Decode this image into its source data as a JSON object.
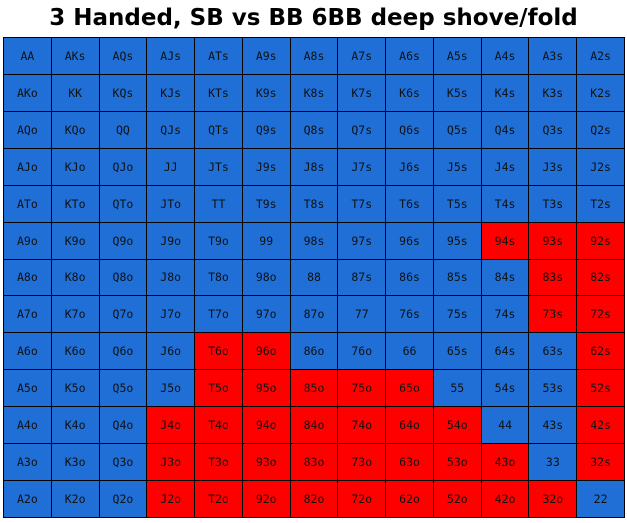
{
  "title": "3 Handed, SB vs BB 6BB deep shove/fold",
  "colors": {
    "shove": "#ff0000",
    "fold": "#1f6fd6",
    "grid": "#000000"
  },
  "chart_data": {
    "type": "heatmap",
    "title": "3 Handed, SB vs BB 6BB deep shove/fold",
    "legend": {
      "S": "shove",
      "F": "fold"
    },
    "hands": [
      [
        "AA",
        "AKs",
        "AQs",
        "AJs",
        "ATs",
        "A9s",
        "A8s",
        "A7s",
        "A6s",
        "A5s",
        "A4s",
        "A3s",
        "A2s"
      ],
      [
        "AKo",
        "KK",
        "KQs",
        "KJs",
        "KTs",
        "K9s",
        "K8s",
        "K7s",
        "K6s",
        "K5s",
        "K4s",
        "K3s",
        "K2s"
      ],
      [
        "AQo",
        "KQo",
        "QQ",
        "QJs",
        "QTs",
        "Q9s",
        "Q8s",
        "Q7s",
        "Q6s",
        "Q5s",
        "Q4s",
        "Q3s",
        "Q2s"
      ],
      [
        "AJo",
        "KJo",
        "QJo",
        "JJ",
        "JTs",
        "J9s",
        "J8s",
        "J7s",
        "J6s",
        "J5s",
        "J4s",
        "J3s",
        "J2s"
      ],
      [
        "ATo",
        "KTo",
        "QTo",
        "JTo",
        "TT",
        "T9s",
        "T8s",
        "T7s",
        "T6s",
        "T5s",
        "T4s",
        "T3s",
        "T2s"
      ],
      [
        "A9o",
        "K9o",
        "Q9o",
        "J9o",
        "T9o",
        "99",
        "98s",
        "97s",
        "96s",
        "95s",
        "94s",
        "93s",
        "92s"
      ],
      [
        "A8o",
        "K8o",
        "Q8o",
        "J8o",
        "T8o",
        "98o",
        "88",
        "87s",
        "86s",
        "85s",
        "84s",
        "83s",
        "82s"
      ],
      [
        "A7o",
        "K7o",
        "Q7o",
        "J7o",
        "T7o",
        "97o",
        "87o",
        "77",
        "76s",
        "75s",
        "74s",
        "73s",
        "72s"
      ],
      [
        "A6o",
        "K6o",
        "Q6o",
        "J6o",
        "T6o",
        "96o",
        "86o",
        "76o",
        "66",
        "65s",
        "64s",
        "63s",
        "62s"
      ],
      [
        "A5o",
        "K5o",
        "Q5o",
        "J5o",
        "T5o",
        "95o",
        "85o",
        "75o",
        "65o",
        "55",
        "54s",
        "53s",
        "52s"
      ],
      [
        "A4o",
        "K4o",
        "Q4o",
        "J4o",
        "T4o",
        "94o",
        "84o",
        "74o",
        "64o",
        "54o",
        "44",
        "43s",
        "42s"
      ],
      [
        "A3o",
        "K3o",
        "Q3o",
        "J3o",
        "T3o",
        "93o",
        "83o",
        "73o",
        "63o",
        "53o",
        "43o",
        "33",
        "32s"
      ],
      [
        "A2o",
        "K2o",
        "Q2o",
        "J2o",
        "T2o",
        "92o",
        "82o",
        "72o",
        "62o",
        "52o",
        "42o",
        "32o",
        "22"
      ]
    ],
    "actions": [
      "FFFFFFFFFFFFF",
      "FFFFFFFFFFFFF",
      "FFFFFFFFFFFFF",
      "FFFFFFFFFFFFF",
      "FFFFFFFFFFFFF",
      "FFFFFFFFFFSSS",
      "FFFFFFFFFFFSS",
      "FFFFFFFFFFFSS",
      "FFFFSSFFFFFFS",
      "FFFFSSSSSFFFS",
      "FFFSSSSSSSFFS",
      "FFFSSSSSSSSFS",
      "FFFSSSSSSSSSF"
    ]
  }
}
